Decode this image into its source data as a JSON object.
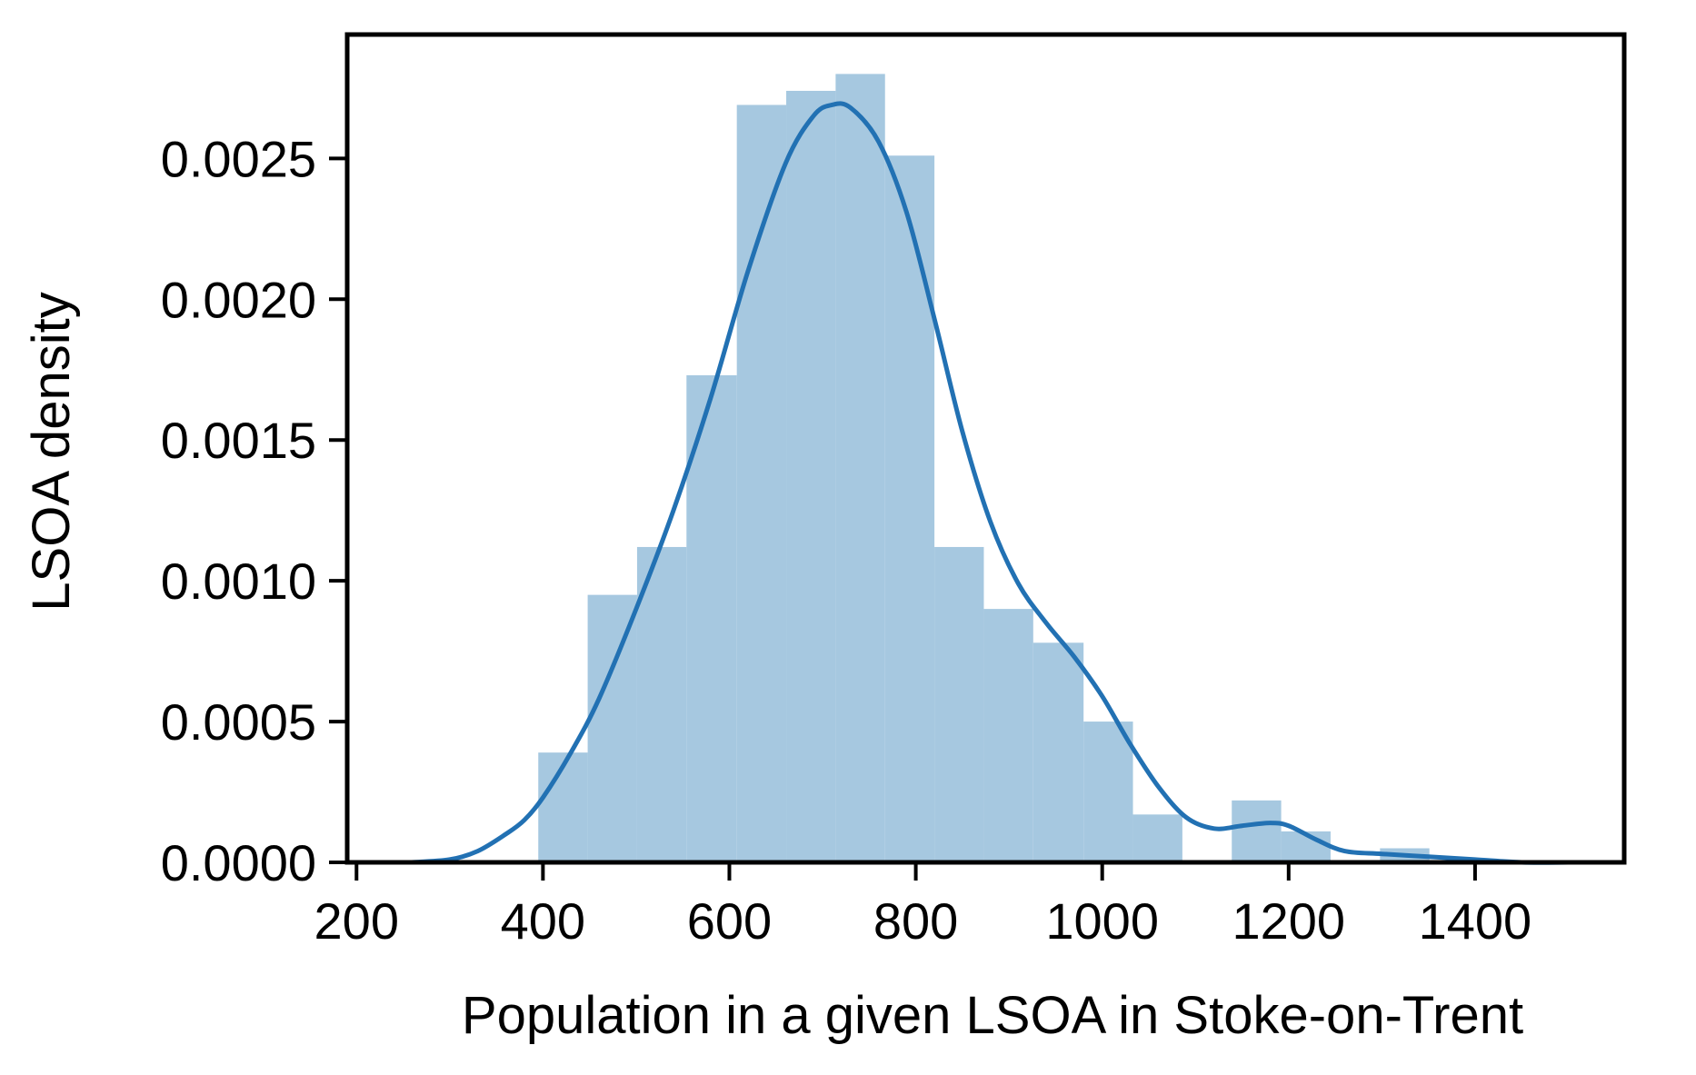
{
  "chart_data": {
    "type": "bar",
    "subtype": "histogram-with-kde",
    "title": "",
    "xlabel": "Population in a given LSOA in Stoke-on-Trent",
    "ylabel": "LSOA density",
    "xlim": [
      190,
      1560
    ],
    "ylim": [
      0,
      0.00294
    ],
    "xticks": [
      200,
      400,
      600,
      800,
      1000,
      1200,
      1400
    ],
    "xtick_labels": [
      "200",
      "400",
      "600",
      "800",
      "1000",
      "1200",
      "1400"
    ],
    "yticks": [
      0,
      0.0005,
      0.001,
      0.0015,
      0.002,
      0.0025
    ],
    "ytick_labels": [
      "0.0000",
      "0.0005",
      "0.0010",
      "0.0015",
      "0.0020",
      "0.0025"
    ],
    "grid": false,
    "legend": "none",
    "colors": {
      "histogram": "#a6c8e0",
      "kde": "#2271b3",
      "axes": "#000000"
    },
    "histogram": {
      "bins": [
        {
          "x0": 395,
          "x1": 448,
          "density": 0.00039
        },
        {
          "x0": 448,
          "x1": 501,
          "density": 0.00095
        },
        {
          "x0": 501,
          "x1": 554,
          "density": 0.00112
        },
        {
          "x0": 554,
          "x1": 608,
          "density": 0.00173
        },
        {
          "x0": 608,
          "x1": 661,
          "density": 0.00269
        },
        {
          "x0": 661,
          "x1": 714,
          "density": 0.00274
        },
        {
          "x0": 714,
          "x1": 767,
          "density": 0.0028
        },
        {
          "x0": 767,
          "x1": 820,
          "density": 0.00251
        },
        {
          "x0": 820,
          "x1": 873,
          "density": 0.00112
        },
        {
          "x0": 873,
          "x1": 926,
          "density": 0.0009
        },
        {
          "x0": 926,
          "x1": 980,
          "density": 0.00078
        },
        {
          "x0": 980,
          "x1": 1033,
          "density": 0.0005
        },
        {
          "x0": 1033,
          "x1": 1086,
          "density": 0.00017
        },
        {
          "x0": 1086,
          "x1": 1139,
          "density": 0.0
        },
        {
          "x0": 1139,
          "x1": 1192,
          "density": 0.00022
        },
        {
          "x0": 1192,
          "x1": 1245,
          "density": 0.00011
        },
        {
          "x0": 1245,
          "x1": 1298,
          "density": 0.0
        },
        {
          "x0": 1298,
          "x1": 1351,
          "density": 5e-05
        }
      ]
    },
    "kde": {
      "x": [
        258,
        300,
        330,
        360,
        380,
        400,
        430,
        460,
        500,
        540,
        580,
        620,
        660,
        690,
        710,
        730,
        760,
        790,
        820,
        850,
        880,
        910,
        940,
        970,
        1000,
        1030,
        1060,
        1090,
        1120,
        1150,
        1180,
        1200,
        1230,
        1260,
        1300,
        1350,
        1400,
        1450,
        1500
      ],
      "y": [
        0.0,
        1e-05,
        4e-05,
        0.0001,
        0.00015,
        0.00023,
        0.00039,
        0.00058,
        0.0009,
        0.00125,
        0.00165,
        0.0021,
        0.00248,
        0.00265,
        0.00269,
        0.00268,
        0.00256,
        0.00231,
        0.00193,
        0.00153,
        0.00121,
        0.00099,
        0.00085,
        0.00073,
        0.00059,
        0.00042,
        0.00027,
        0.00016,
        0.00012,
        0.00013,
        0.00014,
        0.00013,
        8e-05,
        4e-05,
        3e-05,
        2e-05,
        1e-05,
        0.0,
        0.0
      ]
    }
  }
}
